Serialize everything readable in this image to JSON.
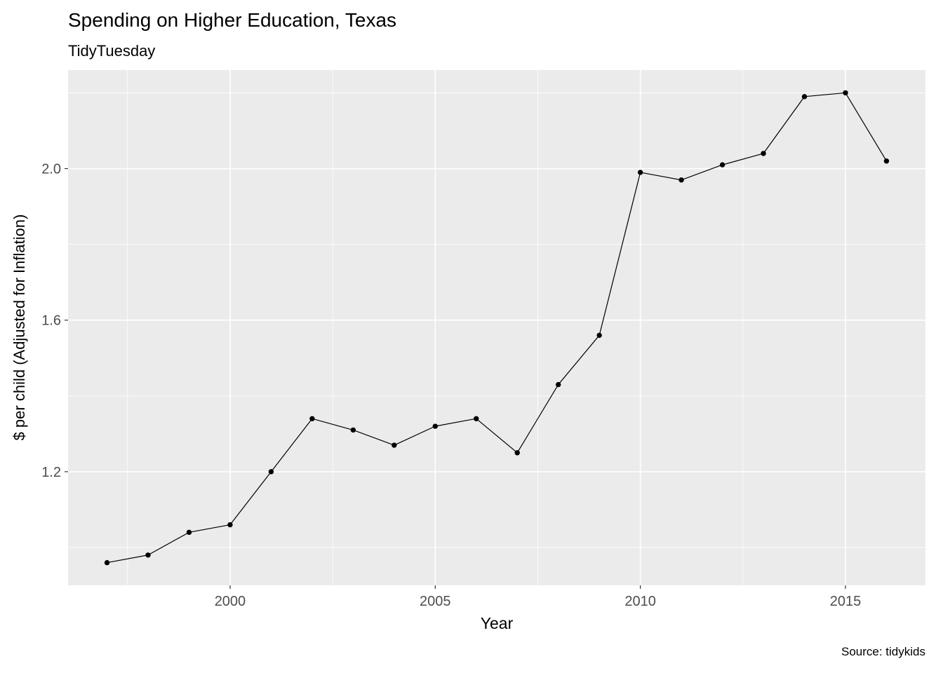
{
  "chart_data": {
    "type": "line",
    "title": "Spending on Higher Education, Texas",
    "subtitle": "TidyTuesday",
    "caption": "Source: tidykids",
    "xlabel": "Year",
    "ylabel": "$ per child (Adjusted for Inflation)",
    "x": [
      1997,
      1998,
      1999,
      2000,
      2001,
      2002,
      2003,
      2004,
      2005,
      2006,
      2007,
      2008,
      2009,
      2010,
      2011,
      2012,
      2013,
      2014,
      2015,
      2016
    ],
    "values": [
      0.96,
      0.98,
      1.04,
      1.06,
      1.2,
      1.34,
      1.31,
      1.27,
      1.32,
      1.34,
      1.25,
      1.43,
      1.56,
      1.99,
      1.97,
      2.01,
      2.04,
      2.19,
      2.2,
      2.02
    ],
    "xlim": [
      1996.05,
      2016.95
    ],
    "ylim": [
      0.9,
      2.26
    ],
    "x_ticks": [
      2000,
      2005,
      2010,
      2015
    ],
    "x_tick_labels": [
      "2000",
      "2005",
      "2010",
      "2015"
    ],
    "x_minor_ticks": [
      1997.5,
      2002.5,
      2007.5,
      2012.5
    ],
    "y_ticks": [
      1.2,
      1.6,
      2.0
    ],
    "y_tick_labels": [
      "1.2",
      "1.6",
      "2.0"
    ],
    "y_minor_ticks": [
      1.0,
      1.4,
      1.8,
      2.2
    ],
    "grid": true,
    "legend": "none",
    "colors": {
      "panel_background": "#EBEBEB",
      "gridline": "#FFFFFF",
      "line": "#000000",
      "point": "#000000",
      "tick_mark": "#333333",
      "tick_label": "#4D4D4D",
      "text": "#000000"
    }
  }
}
